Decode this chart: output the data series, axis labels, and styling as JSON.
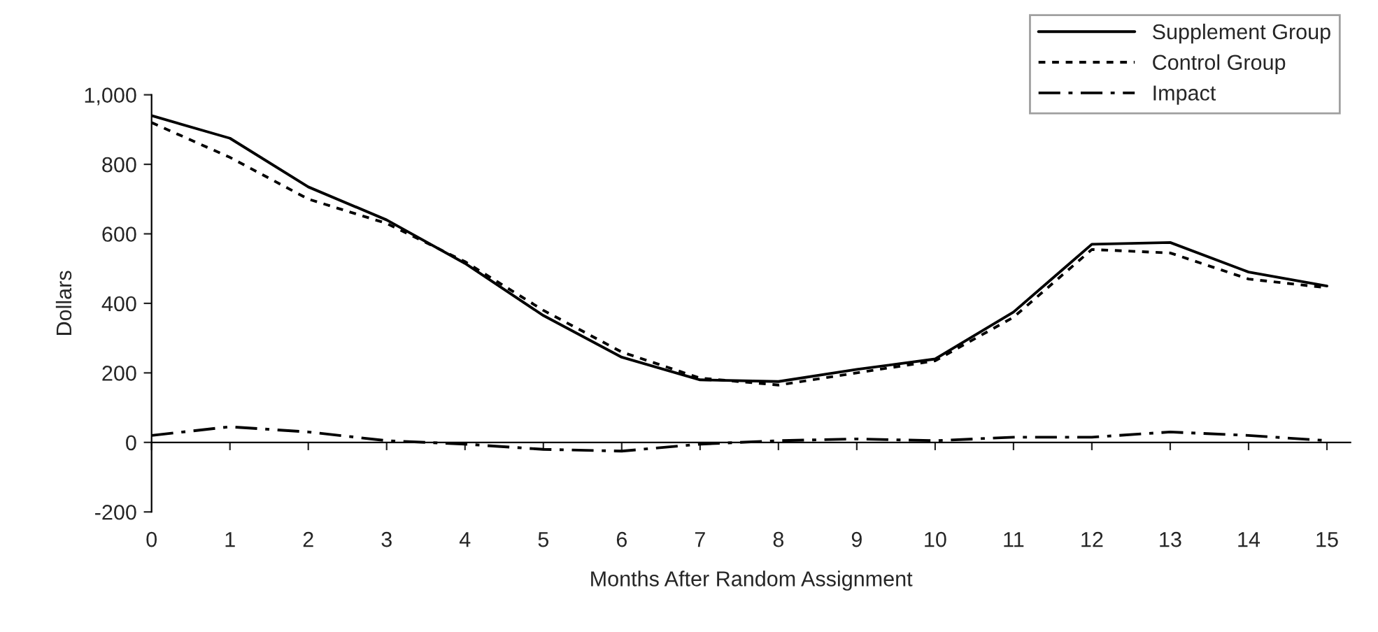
{
  "chart_data": {
    "type": "line",
    "xlabel": "Months After Random Assignment",
    "ylabel": "Dollars",
    "categories": [
      "0",
      "1",
      "2",
      "3",
      "4",
      "5",
      "6",
      "7",
      "8",
      "9",
      "10",
      "11",
      "12",
      "13",
      "14",
      "15"
    ],
    "series": [
      {
        "name": "Supplement Group",
        "color": "#000000",
        "line_style": "solid",
        "values": [
          940,
          875,
          735,
          640,
          515,
          365,
          245,
          180,
          175,
          210,
          240,
          375,
          570,
          575,
          490,
          450
        ]
      },
      {
        "name": "Control Group",
        "color": "#000000",
        "line_style": "dashed",
        "values": [
          920,
          820,
          700,
          630,
          520,
          380,
          260,
          185,
          165,
          200,
          235,
          360,
          555,
          545,
          470,
          445
        ]
      },
      {
        "name": "Impact",
        "color": "#000000",
        "line_style": "dashdot",
        "values": [
          20,
          45,
          30,
          5,
          -5,
          -20,
          -25,
          -5,
          5,
          10,
          5,
          15,
          15,
          30,
          20,
          5
        ]
      }
    ],
    "ylim": [
      -200,
      1000
    ],
    "yticks": [
      {
        "value": -200,
        "label": "-200"
      },
      0,
      200,
      400,
      600,
      800,
      {
        "value": 1000,
        "label": "1,000"
      }
    ],
    "legend": "top right",
    "marker": "none"
  }
}
